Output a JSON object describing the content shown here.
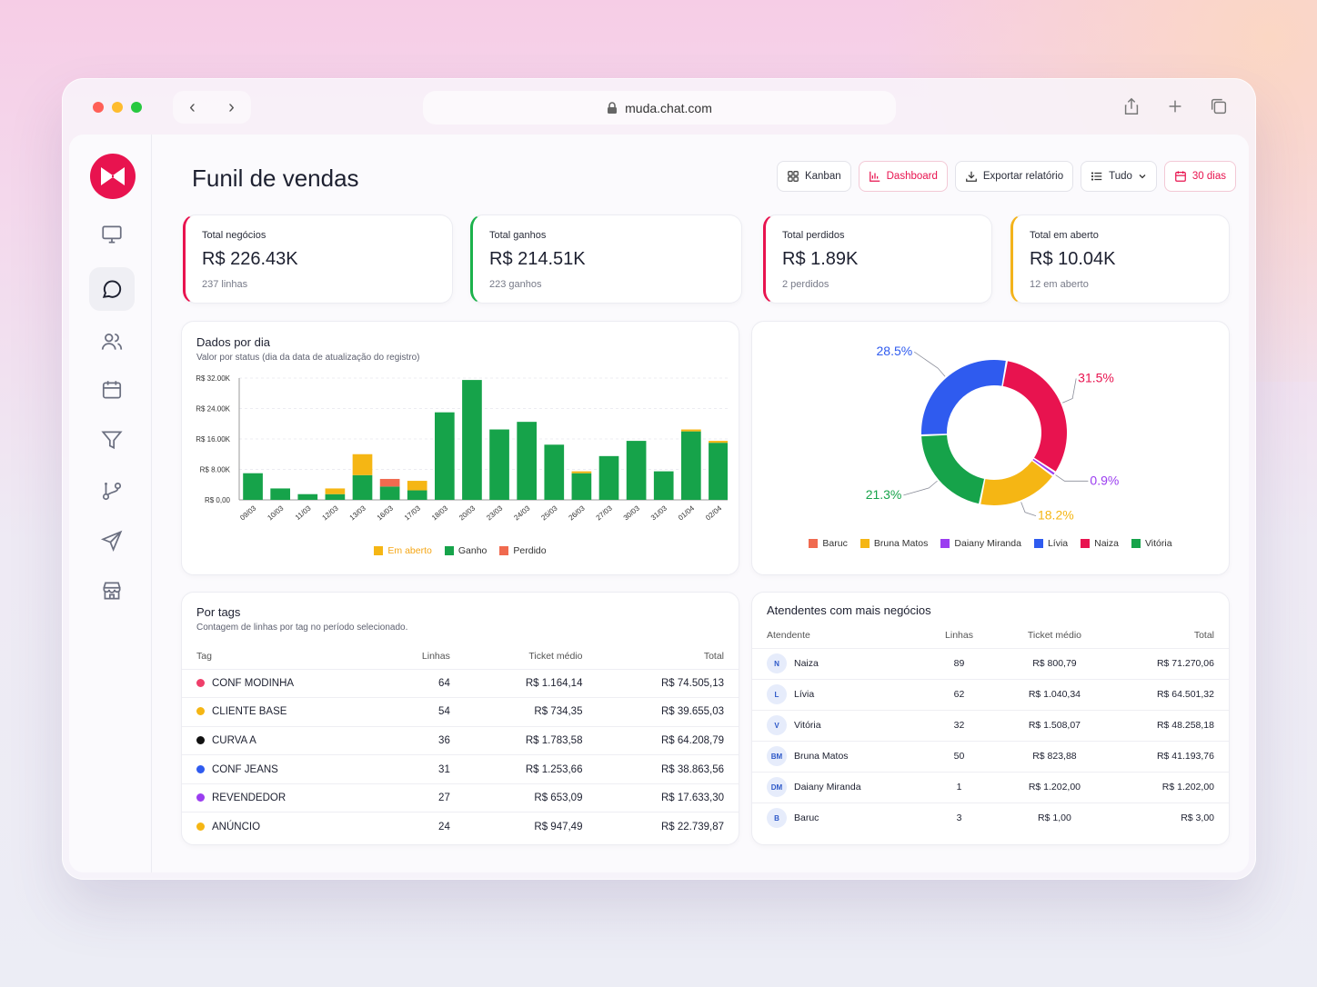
{
  "browser": {
    "url": "muda.chat.com",
    "traffic_colors": [
      "#ff5f57",
      "#febc2e",
      "#28c840"
    ]
  },
  "page": {
    "title": "Funil de vendas",
    "actions": {
      "kanban": "Kanban",
      "dashboard": "Dashboard",
      "export": "Exportar relatório",
      "filter": "Tudo",
      "period": "30 dias"
    }
  },
  "sidebar": {
    "items": [
      {
        "name": "monitor-icon"
      },
      {
        "name": "chat-icon",
        "active": true
      },
      {
        "name": "users-icon"
      },
      {
        "name": "calendar-icon"
      },
      {
        "name": "filter-icon"
      },
      {
        "name": "branch-icon"
      },
      {
        "name": "send-icon"
      },
      {
        "name": "store-icon"
      }
    ]
  },
  "kpis": [
    {
      "label": "Total negócios",
      "value": "R$ 226.43K",
      "sub": "237 linhas",
      "color": "#e8134f"
    },
    {
      "label": "Total ganhos",
      "value": "R$ 214.51K",
      "sub": "223 ganhos",
      "color": "#1cb24b"
    },
    {
      "label": "Total perdidos",
      "value": "R$ 1.89K",
      "sub": "2 perdidos",
      "color": "#e8134f"
    },
    {
      "label": "Total em aberto",
      "value": "R$ 10.04K",
      "sub": "12 em aberto",
      "color": "#f3b31b"
    }
  ],
  "daily": {
    "title": "Dados por dia",
    "subtitle": "Valor por status (dia da data de atualização do registro)",
    "legend": [
      {
        "label": "Em aberto",
        "color": "#f5b614"
      },
      {
        "label": "Ganho",
        "color": "#16a34a"
      },
      {
        "label": "Perdido",
        "color": "#f06a4f"
      }
    ]
  },
  "donut_legend": [
    {
      "label": "Baruc",
      "color": "#f06a4f"
    },
    {
      "label": "Bruna Matos",
      "color": "#f5b614"
    },
    {
      "label": "Daiany Miranda",
      "color": "#9b3df0"
    },
    {
      "label": "Lívia",
      "color": "#2f5bef"
    },
    {
      "label": "Naiza",
      "color": "#e8134f"
    },
    {
      "label": "Vitória",
      "color": "#16a34a"
    }
  ],
  "chart_data": [
    {
      "type": "bar",
      "title": "Dados por dia",
      "stacked": true,
      "categories": [
        "09/03",
        "10/03",
        "11/03",
        "12/03",
        "13/03",
        "16/03",
        "17/03",
        "18/03",
        "20/03",
        "23/03",
        "24/03",
        "25/03",
        "26/03",
        "27/03",
        "30/03",
        "31/03",
        "01/04",
        "02/04"
      ],
      "series": [
        {
          "name": "Ganho",
          "color": "#16a34a",
          "values": [
            7000,
            3000,
            1500,
            1500,
            6500,
            3500,
            2500,
            23000,
            31500,
            18500,
            20500,
            14500,
            7000,
            11500,
            15500,
            7500,
            18000,
            15000
          ]
        },
        {
          "name": "Em aberto",
          "color": "#f5b614",
          "values": [
            0,
            0,
            0,
            1500,
            5500,
            0,
            2500,
            0,
            0,
            0,
            0,
            0,
            500,
            0,
            0,
            0,
            500,
            500
          ]
        },
        {
          "name": "Perdido",
          "color": "#f06a4f",
          "values": [
            0,
            0,
            0,
            0,
            0,
            2000,
            0,
            0,
            0,
            0,
            0,
            0,
            0,
            0,
            0,
            0,
            0,
            0
          ]
        }
      ],
      "ylim": [
        0,
        32000
      ],
      "yticks": [
        "R$ 0,00",
        "R$ 8.00K",
        "R$ 16.00K",
        "R$ 24.00K",
        "R$ 32.00K"
      ],
      "legend_position": "bottom",
      "grid": true
    },
    {
      "type": "pie",
      "donut": true,
      "categories": [
        "Naiza",
        "Daiany Miranda",
        "Bruna Matos",
        "Vitória",
        "Lívia"
      ],
      "values": [
        31.5,
        0.9,
        18.2,
        21.3,
        28.5
      ],
      "labels": [
        "31.5%",
        "0.9%",
        "18.2%",
        "21.3%",
        "28.5%"
      ],
      "colors": [
        "#e8134f",
        "#9b3df0",
        "#f5b614",
        "#16a34a",
        "#2f5bef"
      ]
    }
  ],
  "tags": {
    "title": "Por tags",
    "subtitle": "Contagem de linhas por tag no período selecionado.",
    "columns": [
      "Tag",
      "Linhas",
      "Ticket médio",
      "Total"
    ],
    "rows": [
      {
        "tag": "CONF MODINHA",
        "color": "#ef3f6a",
        "linhas": "64",
        "ticket": "R$ 1.164,14",
        "total": "R$ 74.505,13"
      },
      {
        "tag": "CLIENTE BASE",
        "color": "#f5b614",
        "linhas": "54",
        "ticket": "R$ 734,35",
        "total": "R$ 39.655,03"
      },
      {
        "tag": "CURVA A",
        "color": "#111111",
        "linhas": "36",
        "ticket": "R$ 1.783,58",
        "total": "R$ 64.208,79"
      },
      {
        "tag": "CONF JEANS",
        "color": "#2f5bef",
        "linhas": "31",
        "ticket": "R$ 1.253,66",
        "total": "R$ 38.863,56"
      },
      {
        "tag": "REVENDEDOR",
        "color": "#9b3df0",
        "linhas": "27",
        "ticket": "R$ 653,09",
        "total": "R$ 17.633,30"
      },
      {
        "tag": "ANÚNCIO",
        "color": "#f5b614",
        "linhas": "24",
        "ticket": "R$ 947,49",
        "total": "R$ 22.739,87"
      }
    ]
  },
  "agents": {
    "title": "Atendentes com mais negócios",
    "columns": [
      "Atendente",
      "Linhas",
      "Ticket médio",
      "Total"
    ],
    "rows": [
      {
        "initials": "N",
        "name": "Naiza",
        "linhas": "89",
        "ticket": "R$ 800,79",
        "total": "R$ 71.270,06"
      },
      {
        "initials": "L",
        "name": "Lívia",
        "linhas": "62",
        "ticket": "R$ 1.040,34",
        "total": "R$ 64.501,32"
      },
      {
        "initials": "V",
        "name": "Vitória",
        "linhas": "32",
        "ticket": "R$ 1.508,07",
        "total": "R$ 48.258,18"
      },
      {
        "initials": "BM",
        "name": "Bruna Matos",
        "linhas": "50",
        "ticket": "R$ 823,88",
        "total": "R$ 41.193,76"
      },
      {
        "initials": "DM",
        "name": "Daiany Miranda",
        "linhas": "1",
        "ticket": "R$ 1.202,00",
        "total": "R$ 1.202,00"
      },
      {
        "initials": "B",
        "name": "Baruc",
        "linhas": "3",
        "ticket": "R$ 1,00",
        "total": "R$ 3,00"
      }
    ]
  }
}
